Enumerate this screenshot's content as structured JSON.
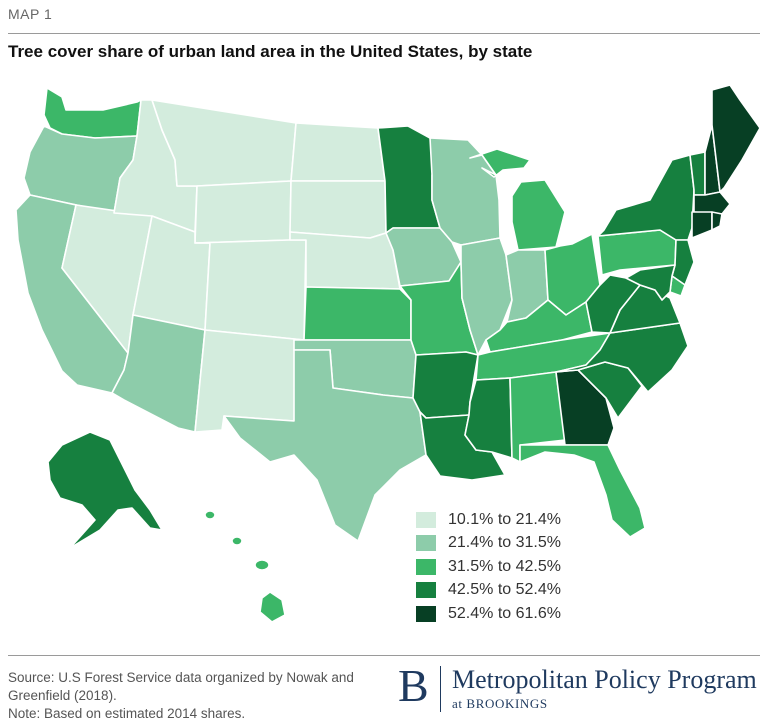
{
  "header": {
    "kicker": "MAP 1",
    "title": "Tree cover share of urban land area in the United States, by state"
  },
  "colors": {
    "c1": "#d3ecdd",
    "c2": "#8dccaa",
    "c3": "#3cb768",
    "c4": "#16803f",
    "c5": "#073f24"
  },
  "legend": {
    "items": [
      {
        "label": "10.1% to 21.4%",
        "color": "#d3ecdd"
      },
      {
        "label": "21.4% to 31.5%",
        "color": "#8dccaa"
      },
      {
        "label": "31.5% to 42.5%",
        "color": "#3cb768"
      },
      {
        "label": "42.5% to 52.4%",
        "color": "#16803f"
      },
      {
        "label": "52.4% to 61.6%",
        "color": "#073f24"
      }
    ]
  },
  "map": {
    "category_by_state": {
      "WA": 3,
      "OR": 2,
      "CA": 2,
      "NV": 1,
      "ID": 1,
      "MT": 1,
      "WY": 1,
      "UT": 1,
      "AZ": 2,
      "CO": 1,
      "NM": 1,
      "ND": 1,
      "SD": 1,
      "NE": 1,
      "KS": 3,
      "OK": 2,
      "TX": 2,
      "MN": 4,
      "IA": 2,
      "MO": 3,
      "AR": 4,
      "LA": 4,
      "WI": 2,
      "IL": 2,
      "MI": 3,
      "IN": 2,
      "OH": 3,
      "KY": 3,
      "TN": 3,
      "MS": 4,
      "AL": 3,
      "GA": 5,
      "FL": 3,
      "SC": 4,
      "NC": 4,
      "VA": 4,
      "WV": 4,
      "PA": 3,
      "NY": 4,
      "VT": 4,
      "NH": 5,
      "ME": 5,
      "MA": 5,
      "CT": 5,
      "RI": 5,
      "NJ": 4,
      "DE": 3,
      "MD": 4,
      "AK": 4,
      "HI": 3
    }
  },
  "footer": {
    "source_line1": "Source: U.S Forest Service data organized by Nowak and",
    "source_line2": "Greenfield (2018).",
    "note": "Note: Based on estimated 2014 shares."
  },
  "brand": {
    "letter": "B",
    "name": "Metropolitan Policy Program",
    "sub": "at BROOKINGS"
  }
}
